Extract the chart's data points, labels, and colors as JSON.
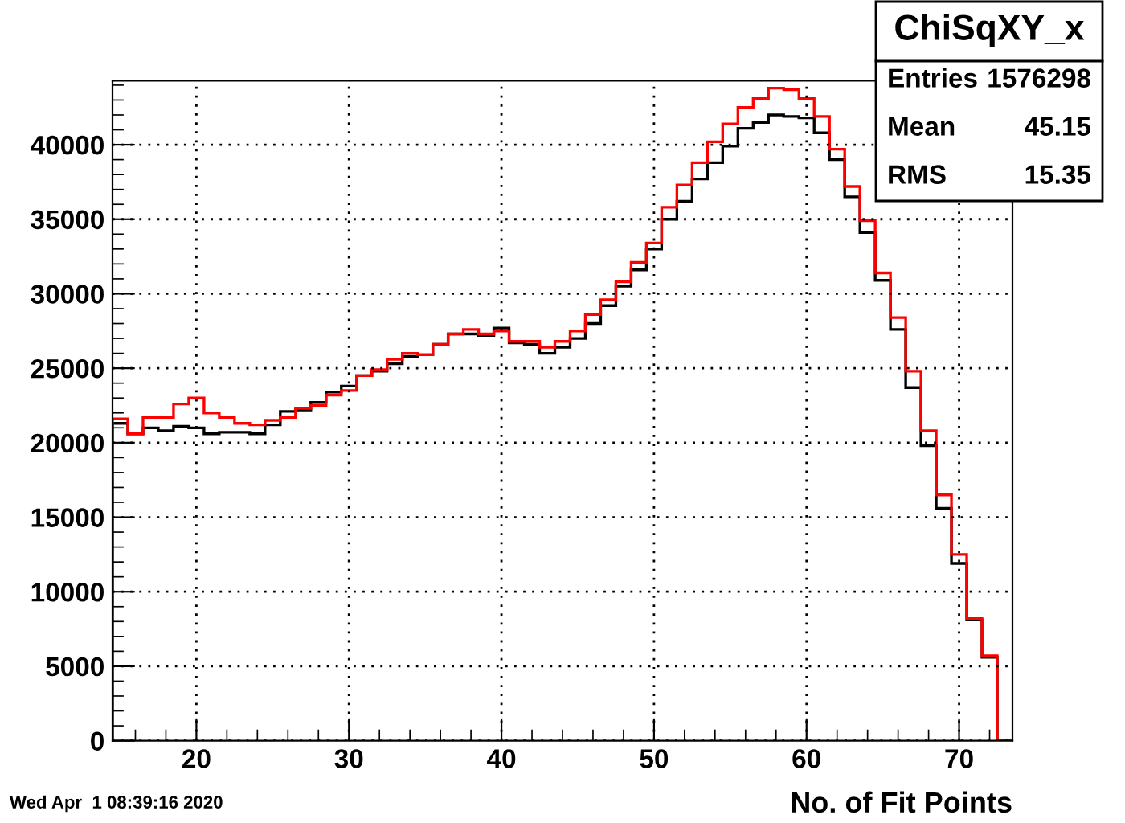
{
  "chart_data": {
    "type": "histogram",
    "title": "ChiSqXY_x",
    "xlabel": "No. of Fit Points",
    "bins": [
      14.5,
      15.5,
      16.5,
      17.5,
      18.5,
      19.5,
      20.5,
      21.5,
      22.5,
      23.5,
      24.5,
      25.5,
      26.5,
      27.5,
      28.5,
      29.5,
      30.5,
      31.5,
      32.5,
      33.5,
      34.5,
      35.5,
      36.5,
      37.5,
      38.5,
      39.5,
      40.5,
      41.5,
      42.5,
      43.5,
      44.5,
      45.5,
      46.5,
      47.5,
      48.5,
      49.5,
      50.5,
      51.5,
      52.5,
      53.5,
      54.5,
      55.5,
      56.5,
      57.5,
      58.5,
      59.5,
      60.5,
      61.5,
      62.5,
      63.5,
      64.5,
      65.5,
      66.5,
      67.5,
      68.5,
      69.5,
      70.5,
      71.5,
      72.5,
      73.5
    ],
    "series": [
      {
        "color": "#000000",
        "values": [
          21300,
          20600,
          21000,
          20800,
          21100,
          21000,
          20600,
          20700,
          20700,
          20600,
          21200,
          22100,
          22200,
          22700,
          23400,
          23800,
          24500,
          24800,
          25300,
          25800,
          25900,
          26600,
          27300,
          27300,
          27200,
          27700,
          26700,
          26600,
          26000,
          26400,
          27000,
          28000,
          29200,
          30500,
          31600,
          33000,
          35000,
          36200,
          37700,
          38800,
          39900,
          41100,
          41500,
          42000,
          41900,
          41800,
          40800,
          39000,
          36500,
          34100,
          30900,
          27600,
          23700,
          19800,
          15600,
          11900,
          8100,
          5600,
          0
        ]
      },
      {
        "color": "#ff0000",
        "values": [
          21600,
          20600,
          21700,
          21700,
          22600,
          23000,
          22000,
          21700,
          21300,
          21200,
          21500,
          21700,
          22300,
          22500,
          23200,
          23500,
          24500,
          24900,
          25600,
          26000,
          25900,
          26600,
          27300,
          27600,
          27300,
          27500,
          26800,
          26800,
          26400,
          26800,
          27500,
          28600,
          29600,
          30800,
          32100,
          33400,
          35800,
          37300,
          38800,
          40200,
          41400,
          42500,
          43100,
          43800,
          43700,
          43100,
          41900,
          39700,
          37200,
          34900,
          31400,
          28400,
          24800,
          20800,
          16500,
          12500,
          8200,
          5700,
          0
        ]
      }
    ],
    "xlim": [
      14.5,
      73.5
    ],
    "ylim": [
      0,
      44300
    ],
    "xticks": [
      20,
      30,
      40,
      50,
      60,
      70
    ],
    "yticks": [
      0,
      5000,
      10000,
      15000,
      20000,
      25000,
      30000,
      35000,
      40000
    ],
    "grid": true,
    "annotations": [
      "Entries 1576298",
      "Mean 45.15",
      "RMS 15.35",
      "Wed Apr  1 08:39:16 2020"
    ]
  }
}
